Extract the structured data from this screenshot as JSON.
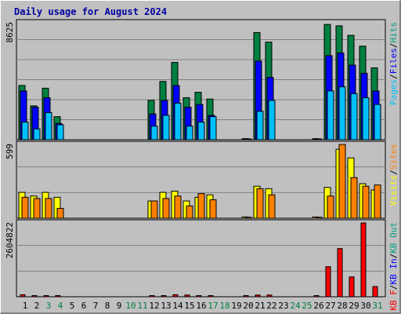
{
  "window": {
    "title": "Daily usage for August 2024"
  },
  "chart_data": {
    "type": "bar",
    "title": "Daily usage for August 2024",
    "x": [
      1,
      2,
      3,
      4,
      5,
      6,
      7,
      8,
      9,
      10,
      11,
      12,
      13,
      14,
      15,
      16,
      17,
      18,
      19,
      20,
      21,
      22,
      23,
      24,
      25,
      26,
      27,
      28,
      29,
      30,
      31
    ],
    "weekend_days": [
      3,
      4,
      10,
      11,
      17,
      18,
      24,
      25,
      31
    ],
    "panels": [
      {
        "name": "hits-files-pages",
        "max_label": "8625",
        "ylim": [
          0,
          8625
        ],
        "legend": [
          "Pages",
          "/",
          "Files",
          "/",
          "Hits"
        ],
        "legend_colors": [
          "#00c0ff",
          "#000000",
          "#0000ff",
          "#000000",
          "#00a080"
        ],
        "series": [
          {
            "name": "Hits",
            "color": "#008040",
            "values": [
              4000,
              2500,
              3800,
              1700,
              0,
              0,
              0,
              0,
              0,
              0,
              0,
              2900,
              4300,
              5700,
              3100,
              3500,
              3000,
              0,
              0,
              80,
              7900,
              7200,
              0,
              0,
              0,
              80,
              8500,
              8400,
              7700,
              6900,
              5300
            ]
          },
          {
            "name": "Files",
            "color": "#0000ff",
            "values": [
              3600,
              2400,
              3100,
              1200,
              0,
              0,
              0,
              0,
              0,
              0,
              0,
              1900,
              2900,
              4000,
              2400,
              2600,
              1800,
              0,
              0,
              60,
              5800,
              4600,
              0,
              0,
              0,
              60,
              6200,
              6400,
              5500,
              4900,
              3600
            ]
          },
          {
            "name": "Pages",
            "color": "#00c0ff",
            "values": [
              1300,
              800,
              2000,
              1100,
              0,
              0,
              0,
              0,
              0,
              0,
              0,
              1000,
              1800,
              2700,
              1000,
              1300,
              1700,
              0,
              0,
              40,
              2100,
              2900,
              0,
              0,
              0,
              40,
              3600,
              3900,
              3400,
              3100,
              2600
            ]
          }
        ]
      },
      {
        "name": "visits-sites",
        "max_label": "599",
        "ylim": [
          0,
          599
        ],
        "legend": [
          "Visits",
          "/",
          "Sites"
        ],
        "legend_colors": [
          "#ffff00",
          "#000000",
          "#ff8000"
        ],
        "series": [
          {
            "name": "Visits",
            "color": "#ffff00",
            "values": [
              210,
              180,
              210,
              170,
              0,
              0,
              0,
              0,
              0,
              0,
              0,
              140,
              210,
              220,
              140,
              170,
              190,
              0,
              0,
              10,
              260,
              240,
              0,
              0,
              0,
              10,
              250,
              560,
              490,
              280,
              230
            ]
          },
          {
            "name": "Sites",
            "color": "#ff8000",
            "values": [
              170,
              160,
              160,
              80,
              0,
              0,
              0,
              0,
              0,
              0,
              0,
              140,
              160,
              180,
              100,
              200,
              150,
              0,
              0,
              8,
              240,
              190,
              0,
              0,
              0,
              8,
              180,
              599,
              330,
              260,
              270
            ]
          }
        ]
      },
      {
        "name": "kbytes",
        "max_label": "2604822",
        "ylim": [
          0,
          2604822
        ],
        "legend": [
          "KB F",
          "/",
          "KB In",
          "/",
          "KB Out"
        ],
        "legend_colors": [
          "#ff0000",
          "#000000",
          "#0000ff",
          "#000000",
          "#00a080"
        ],
        "series": [
          {
            "name": "KB F",
            "color": "#ff0000",
            "values": [
              70000,
              40000,
              40000,
              40000,
              0,
              0,
              0,
              0,
              0,
              0,
              0,
              40000,
              40000,
              70000,
              60000,
              40000,
              40000,
              0,
              0,
              40000,
              60000,
              60000,
              0,
              0,
              0,
              40000,
              1060000,
              1700000,
              700000,
              2604822,
              360000
            ]
          }
        ]
      }
    ]
  }
}
